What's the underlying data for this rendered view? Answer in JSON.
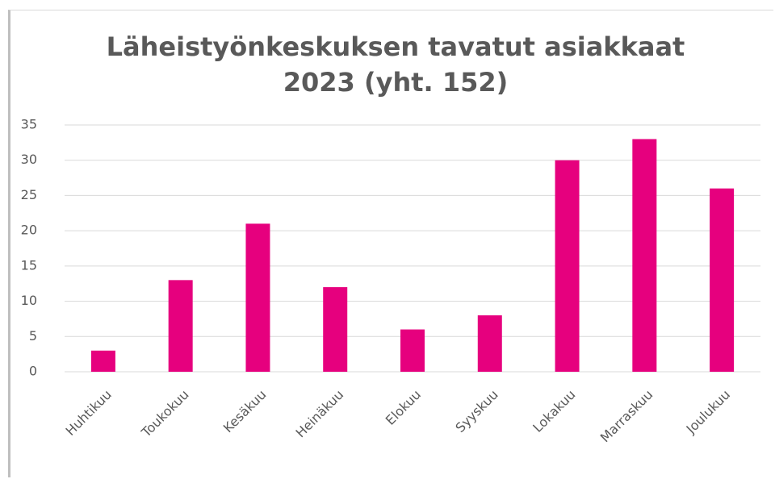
{
  "chart_data": {
    "type": "bar",
    "title": "Läheistyönkeskuksen tavatut asiakkaat 2023 (yht. 152)",
    "categories": [
      "Huhtikuu",
      "Toukokuu",
      "Kesäkuu",
      "Heinäkuu",
      "Elokuu",
      "Syyskuu",
      "Lokakuu",
      "Marraskuu",
      "Joulukuu"
    ],
    "values": [
      3,
      13,
      21,
      12,
      6,
      8,
      30,
      33,
      26
    ],
    "color": "#e6007e",
    "ylim": [
      0,
      35
    ],
    "yticks": [
      0,
      5,
      10,
      15,
      20,
      25,
      30,
      35
    ],
    "grid": true
  }
}
